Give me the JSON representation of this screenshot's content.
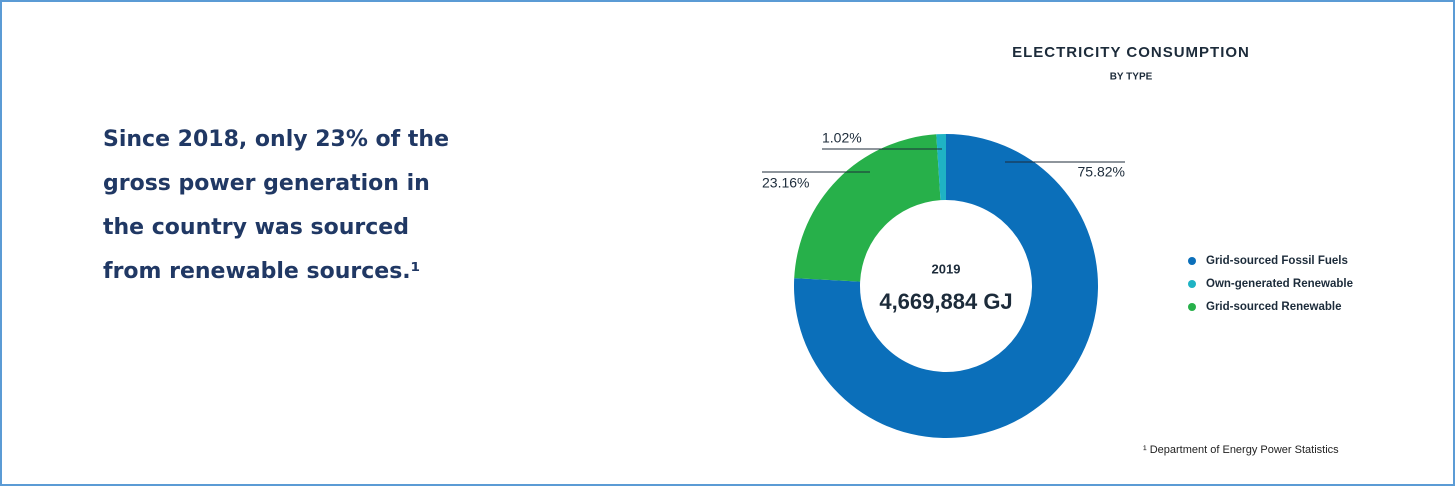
{
  "text_block": {
    "text": "Since 2018, only 23% of the gross power generation in the country was sourced from renewable sources.¹"
  },
  "footnote": "¹ Department of Energy Power Statistics",
  "chart_data": {
    "type": "donut",
    "title": "ELECTRICITY CONSUMPTION",
    "subtitle": "BY TYPE",
    "center_title": "2019",
    "center_text": "4,669,884 GJ",
    "categories": [
      "Grid-sourced Fossil Fuels",
      "Grid-sourced Renewable",
      "Own-generated Renewable"
    ],
    "values": [
      75.82,
      23.16,
      1.02
    ],
    "value_labels": [
      "75.82%",
      "23.16%",
      "1.02%"
    ],
    "colors": [
      "#0b6fba",
      "#27b04a",
      "#1fb3c4"
    ]
  }
}
